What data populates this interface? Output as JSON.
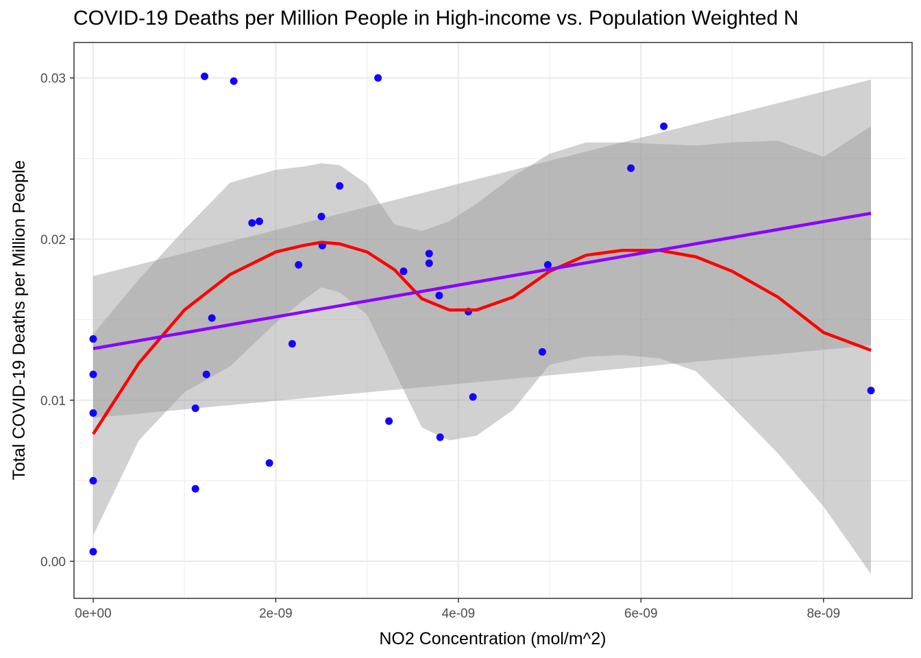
{
  "chart_data": {
    "type": "scatter",
    "title": "COVID-19 Deaths per Million People in High-income vs. Population Weighted N",
    "xlabel": "NO2 Concentration (mol/m^2)",
    "ylabel": "Total COVID-19 Deaths per Million People",
    "xlim": [
      -2.1e-10,
      8.97e-09
    ],
    "ylim": [
      -0.0023,
      0.0322
    ],
    "x_ticks": [
      0,
      2e-09,
      4e-09,
      6e-09,
      8e-09
    ],
    "x_tick_labels": [
      "0e+00",
      "2e-09",
      "4e-09",
      "6e-09",
      "8e-09"
    ],
    "y_ticks": [
      0,
      0.01,
      0.02,
      0.03
    ],
    "y_tick_labels": [
      "0.00",
      "0.01",
      "0.02",
      "0.03"
    ],
    "grid": true,
    "colors": {
      "points": "#1400ff",
      "linear_fit": "#8b00ff",
      "loess_fit": "#ff0000",
      "ribbon": "#999999",
      "grid": "#ebebeb",
      "panel_border": "#333333"
    },
    "points": {
      "x": [
        0,
        0,
        0,
        0,
        0,
        1.12e-09,
        1.12e-09,
        1.22e-09,
        1.24e-09,
        1.3e-09,
        1.54e-09,
        1.74e-09,
        1.82e-09,
        1.93e-09,
        2.18e-09,
        2.25e-09,
        2.5e-09,
        2.51e-09,
        2.7e-09,
        3.12e-09,
        3.24e-09,
        3.4e-09,
        3.68e-09,
        3.68e-09,
        3.79e-09,
        3.8e-09,
        4.11e-09,
        4.16e-09,
        4.92e-09,
        4.98e-09,
        5.89e-09,
        6.25e-09,
        8.52e-09
      ],
      "y": [
        0.0138,
        0.0116,
        0.0092,
        0.005,
        0.0006,
        0.0095,
        0.0045,
        0.0301,
        0.0116,
        0.0151,
        0.0298,
        0.021,
        0.0211,
        0.0061,
        0.0135,
        0.0184,
        0.0214,
        0.0196,
        0.0233,
        0.03,
        0.0087,
        0.018,
        0.0191,
        0.0185,
        0.0165,
        0.0077,
        0.0155,
        0.0102,
        0.013,
        0.0184,
        0.0244,
        0.027,
        0.0106
      ]
    },
    "linear_fit": {
      "x": [
        0,
        8.52e-09
      ],
      "y": [
        0.0132,
        0.0216
      ],
      "ci_lower": [
        0.0089,
        0.0134
      ],
      "ci_upper": [
        0.0177,
        0.0299
      ]
    },
    "loess_fit": {
      "x": [
        0,
        5e-10,
        1e-09,
        1.5e-09,
        2e-09,
        2.3e-09,
        2.5e-09,
        2.7e-09,
        3e-09,
        3.3e-09,
        3.6e-09,
        3.9e-09,
        4.2e-09,
        4.6e-09,
        5e-09,
        5.4e-09,
        5.8e-09,
        6.2e-09,
        6.6e-09,
        7e-09,
        7.5e-09,
        8e-09,
        8.52e-09
      ],
      "y": [
        0.0079,
        0.0123,
        0.0156,
        0.0178,
        0.0192,
        0.0196,
        0.0198,
        0.0197,
        0.0192,
        0.0181,
        0.0163,
        0.0156,
        0.0156,
        0.0164,
        0.018,
        0.019,
        0.0193,
        0.0193,
        0.0189,
        0.018,
        0.0164,
        0.0142,
        0.0131
      ],
      "ci_lower": [
        0.0016,
        0.0075,
        0.0105,
        0.0121,
        0.0148,
        0.0162,
        0.017,
        0.0167,
        0.0153,
        0.0118,
        0.0083,
        0.0075,
        0.0078,
        0.0094,
        0.0122,
        0.0127,
        0.0128,
        0.0126,
        0.0118,
        0.0096,
        0.0067,
        0.0034,
        -0.0008
      ],
      "ci_upper": [
        0.0141,
        0.0175,
        0.0206,
        0.0235,
        0.0243,
        0.0245,
        0.0247,
        0.0246,
        0.0234,
        0.0209,
        0.0205,
        0.0211,
        0.0222,
        0.0239,
        0.0253,
        0.026,
        0.026,
        0.0259,
        0.0258,
        0.026,
        0.0261,
        0.0251,
        0.027
      ]
    }
  }
}
